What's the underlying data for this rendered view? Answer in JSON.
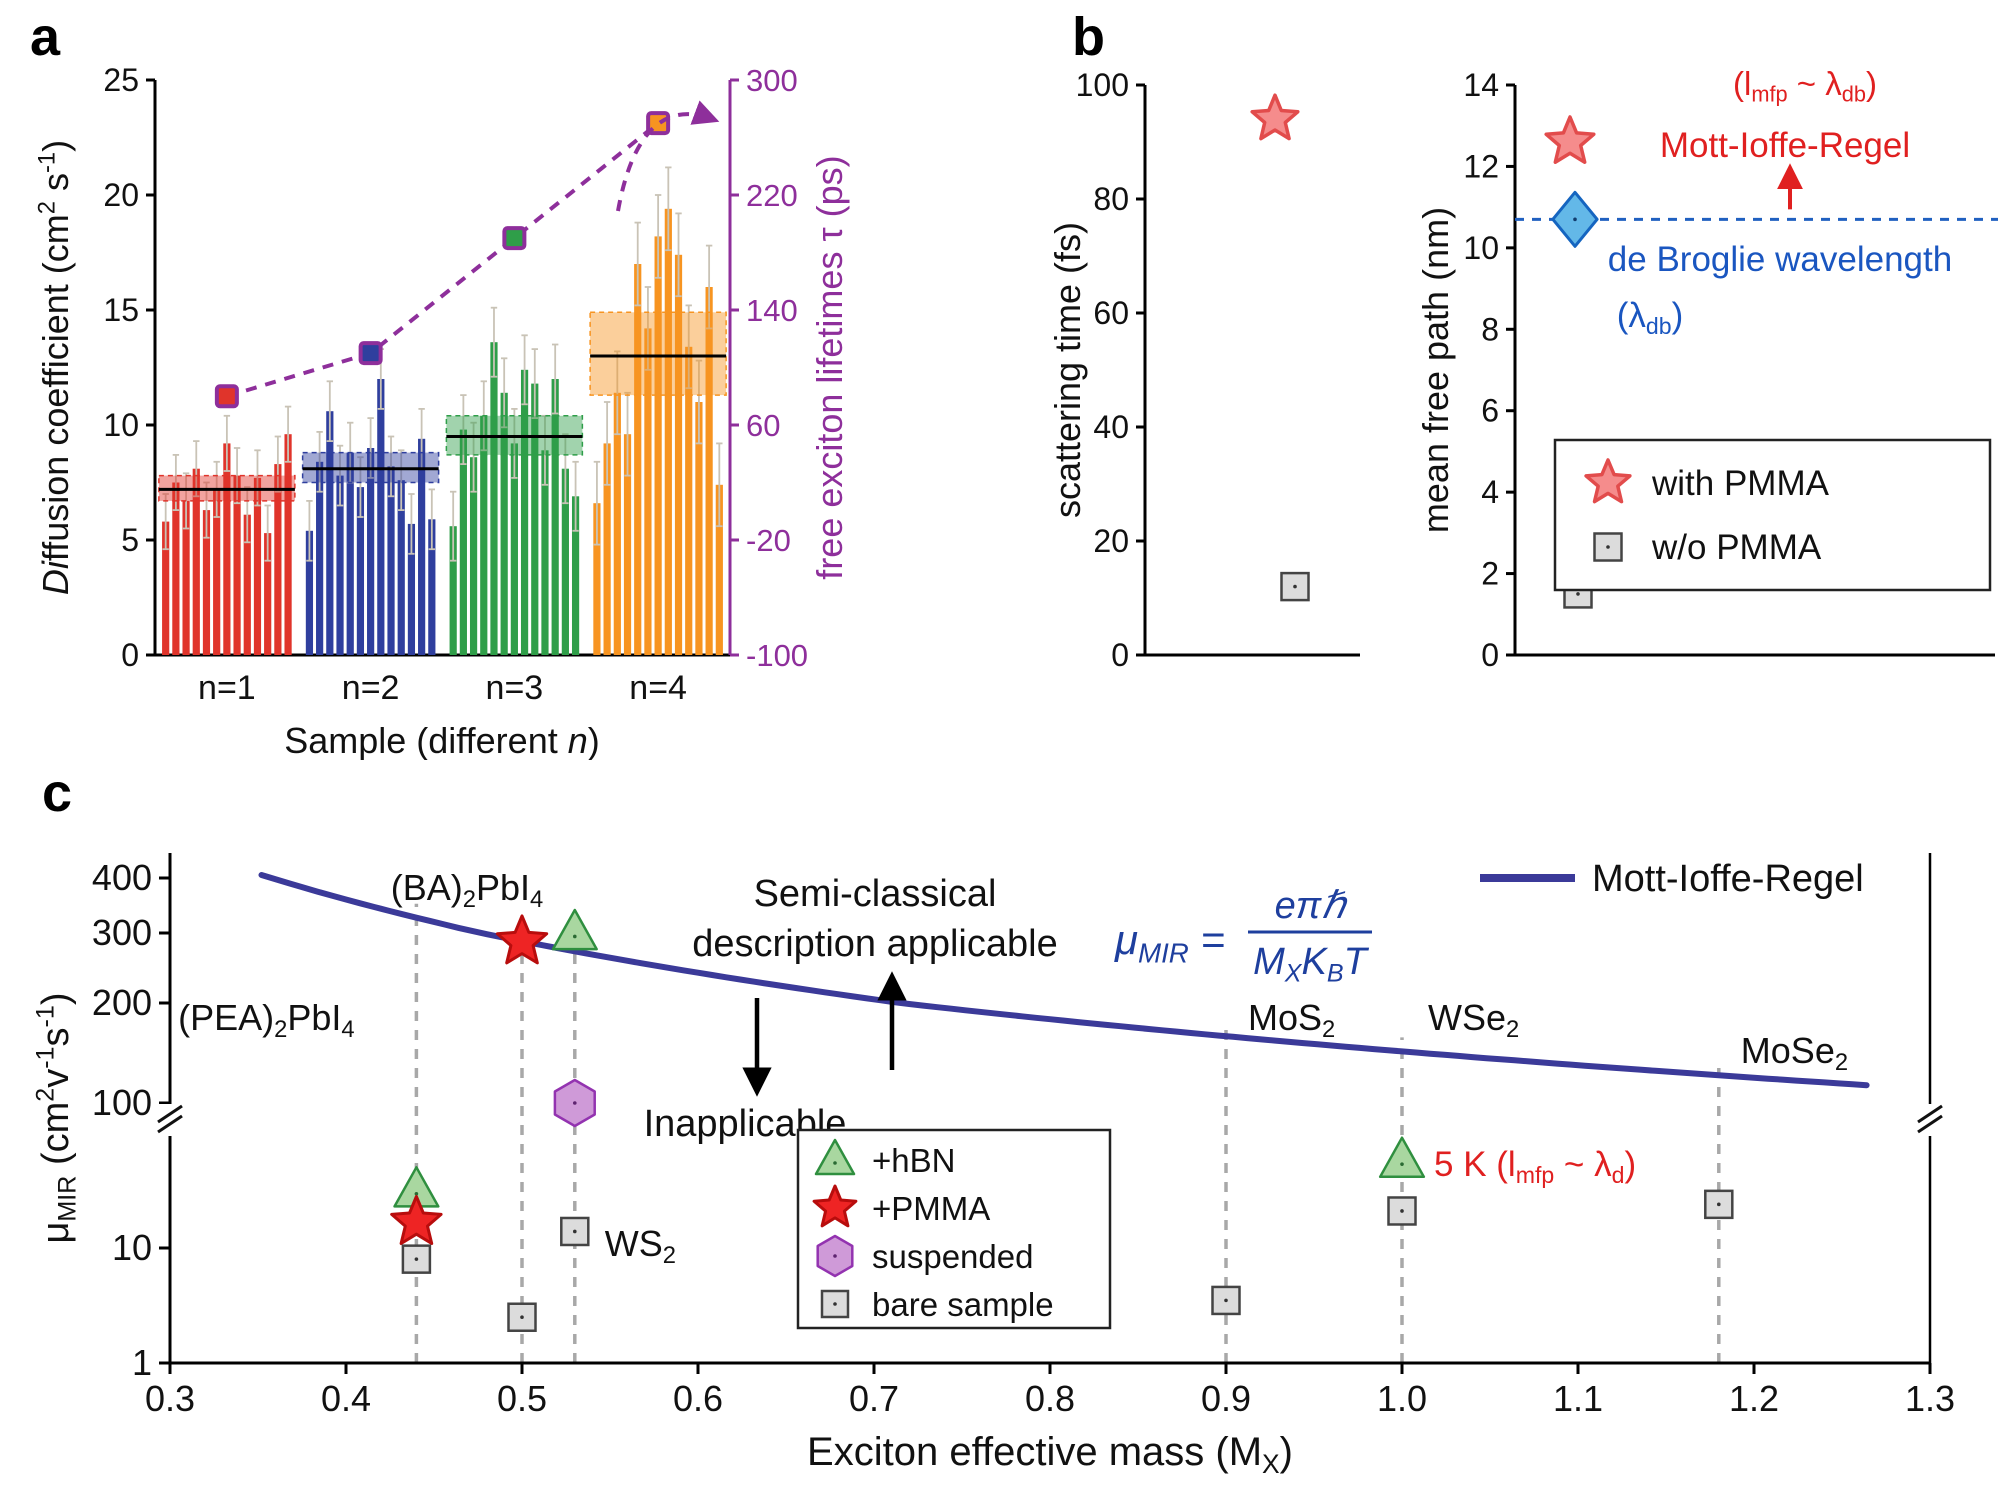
{
  "figure": {
    "panel_a_label": "a",
    "panel_b_label": "b",
    "panel_c_label": "c"
  },
  "chart_data": [
    {
      "id": "panel_a",
      "type": "bar",
      "xlabel": "Sample (different *n*)",
      "ylabel_left": "*Di*ffusion coefficient (cm^{2} s^{-1})",
      "ylabel_right": "free exciton lifetimes τ (ps)",
      "ylim_left": [
        0,
        25
      ],
      "yticks_left": [
        0,
        5,
        10,
        15,
        20,
        25
      ],
      "ylim_right": [
        -100,
        300
      ],
      "yticks_right": [
        -100,
        -20,
        60,
        140,
        220,
        300
      ],
      "categories": [
        "n=1",
        "n=2",
        "n=3",
        "n=4"
      ],
      "colors": [
        "#e0342b",
        "#2f3f9e",
        "#2f9e49",
        "#f79421"
      ],
      "error_color": "#c9c3b6",
      "lifeline_color": "#8e2f9b",
      "bar_values": [
        [
          5.8,
          7.5,
          6.7,
          8.1,
          6.3,
          7.2,
          9.2,
          7.8,
          6.1,
          7.7,
          5.3,
          8.3,
          9.6
        ],
        [
          5.4,
          8.4,
          10.6,
          7.8,
          8.8,
          7.3,
          9.0,
          12.0,
          8.2,
          7.6,
          5.7,
          9.4,
          5.9
        ],
        [
          5.6,
          9.8,
          8.6,
          10.4,
          13.6,
          11.4,
          9.2,
          12.4,
          11.8,
          8.9,
          12.0,
          8.1,
          6.9
        ],
        [
          6.6,
          9.2,
          11.4,
          9.6,
          17.0,
          14.2,
          18.2,
          19.4,
          17.4,
          13.4,
          11.0,
          16.0,
          7.4
        ]
      ],
      "bar_error": [
        1.2,
        1.3,
        1.5,
        1.8
      ],
      "mean": [
        7.2,
        8.1,
        9.5,
        13.0
      ],
      "band": [
        [
          6.7,
          7.8
        ],
        [
          7.5,
          8.8
        ],
        [
          8.7,
          10.4
        ],
        [
          11.3,
          14.9
        ]
      ],
      "lifetimes_ps": [
        80,
        110,
        190,
        270
      ]
    },
    {
      "id": "panel_b_left",
      "type": "scatter",
      "ylabel": "scattering time (fs)",
      "ylim": [
        0,
        100
      ],
      "yticks": [
        0,
        20,
        40,
        60,
        80,
        100
      ],
      "points": [
        {
          "label": "with PMMA",
          "marker": "star",
          "value": 94
        },
        {
          "label": "w/o PMMA",
          "marker": "square",
          "value": 12
        }
      ]
    },
    {
      "id": "panel_b_right",
      "type": "scatter",
      "ylabel": "mean free path (nm)",
      "ylim": [
        0,
        14
      ],
      "yticks": [
        0,
        2,
        4,
        6,
        8,
        10,
        12,
        14
      ],
      "dashed_line_value": 10.7,
      "points": [
        {
          "label": "with PMMA (Mott-Ioffe-Regel)",
          "marker": "star",
          "value": 12.6
        },
        {
          "label": "de Broglie wavelength",
          "marker": "diamond",
          "value": 10.7
        },
        {
          "label": "w/o PMMA",
          "marker": "square",
          "value": 1.5
        }
      ],
      "annotations": {
        "mfp_relation": "(l_{mfp} ~ λ_{db})",
        "mir_label": "Mott-Ioffe-Regel",
        "debroglie_label": "de Broglie wavelength",
        "debroglie_symbol": "(λ_{db})"
      },
      "legend": [
        {
          "marker": "star",
          "label": "with PMMA"
        },
        {
          "marker": "square",
          "label": "w/o PMMA"
        }
      ],
      "colors": {
        "star_fill": "#f58c8c",
        "star_stroke": "#e24c4c",
        "square_fill": "#dcdcdc",
        "square_stroke": "#444444",
        "diamond_fill": "#63b8e8",
        "diamond_stroke": "#1565c0",
        "dashed_blue": "#2060c0",
        "red_text": "#e02020",
        "blue_text": "#1a56c0"
      }
    },
    {
      "id": "panel_c",
      "type": "scatter",
      "xlabel": "Exciton effective mass (M_{X})",
      "ylabel": "μ_{MIR} (cm^{2}v^{-1}s^{-1})",
      "xlim": [
        0.3,
        1.3
      ],
      "xticks": [
        0.3,
        0.4,
        0.5,
        0.6,
        0.7,
        0.8,
        0.9,
        1.0,
        1.1,
        1.2,
        1.3
      ],
      "ytick_values": [
        1,
        10,
        100,
        200,
        300,
        400
      ],
      "curve": {
        "label": "Mott-Ioffe-Regel",
        "coefficient": 143,
        "range": [
          0.352,
          1.27
        ],
        "color": "#3b3a99",
        "formula_lhs": "μ_{MIR} =",
        "formula_num": "eπℏ",
        "formula_den": "M_{X}K_{B}T",
        "formula_color": "#1e3f9e"
      },
      "materials": [
        {
          "name": "(PEA)_{2}PbI_{4}",
          "x": 0.44,
          "points": [
            {
              "marker": "triangle",
              "value": 25
            },
            {
              "marker": "star",
              "value": 15
            },
            {
              "marker": "square",
              "value": 8
            }
          ]
        },
        {
          "name": "(BA)_{2}PbI_{4}",
          "x": 0.5,
          "points": [
            {
              "marker": "star",
              "value": 285
            },
            {
              "marker": "square",
              "value": 2.5
            }
          ]
        },
        {
          "name": "WS_{2}",
          "x": 0.53,
          "points": [
            {
              "marker": "triangle",
              "value": 300
            },
            {
              "marker": "hexagon",
              "value": 100
            },
            {
              "marker": "square",
              "value": 13
            }
          ]
        },
        {
          "name": "MoS_{2}",
          "x": 0.9,
          "points": [
            {
              "marker": "square",
              "value": 3.5
            }
          ]
        },
        {
          "name": "WSe_{2}",
          "x": 1.0,
          "points": [
            {
              "marker": "triangle",
              "value": 40
            },
            {
              "marker": "square",
              "value": 18
            }
          ]
        },
        {
          "name": "MoSe_{2}",
          "x": 1.18,
          "points": [
            {
              "marker": "square",
              "value": 20
            }
          ]
        }
      ],
      "legend": [
        {
          "marker": "triangle",
          "label": "+hBN"
        },
        {
          "marker": "star",
          "label": "+PMMA"
        },
        {
          "marker": "hexagon",
          "label": "suspended"
        },
        {
          "marker": "square",
          "label": "bare sample"
        }
      ],
      "annotations": {
        "applicable_line1": "Semi-classical",
        "applicable_line2": "description applicable",
        "inapplicable": "Inapplicable",
        "five_k": "5 K (l_{mfp} ~ λ_{d})",
        "five_k_color": "#e02020",
        "curve_legend": "Mott-Ioffe-Regel"
      },
      "marker_colors": {
        "triangle": {
          "fill": "#a9d7a0",
          "stroke": "#2f8f3f"
        },
        "star": {
          "fill": "#ee2424",
          "stroke": "#b80d0d"
        },
        "hexagon": {
          "fill": "#cf9ad8",
          "stroke": "#9333b0"
        },
        "square": {
          "fill": "#dcdcdc",
          "stroke": "#444444"
        }
      }
    }
  ]
}
